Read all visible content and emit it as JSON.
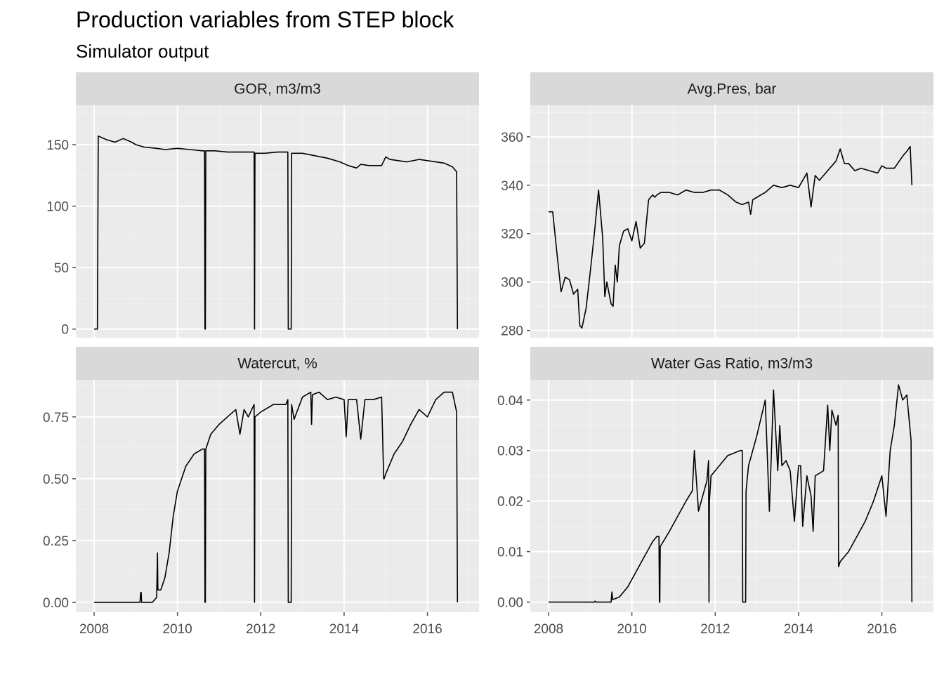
{
  "title": "Production variables from STEP block",
  "subtitle": "Simulator output",
  "theme": {
    "panel_bg": "#ebebeb",
    "strip_bg": "#d9d9d9",
    "grid_major": "#ffffff",
    "grid_minor": "#f4f4f4",
    "line_color": "#000000",
    "tick_color": "#4d4d4d"
  },
  "chart_data": [
    {
      "type": "line",
      "facet": "GOR, m3/m3",
      "xlim": [
        2008.0,
        2016.8
      ],
      "xticks": [
        2008,
        2010,
        2012,
        2014,
        2016
      ],
      "ylim": [
        -7,
        182
      ],
      "yticks": [
        0,
        50,
        100,
        150
      ],
      "ytick_labels": [
        "0",
        "50",
        "100",
        "150"
      ],
      "x": [
        2008.0,
        2008.05,
        2008.08,
        2008.1,
        2008.3,
        2008.5,
        2008.7,
        2008.9,
        2009.0,
        2009.2,
        2009.5,
        2009.7,
        2010.0,
        2010.3,
        2010.6,
        2010.65,
        2010.66,
        2010.67,
        2010.68,
        2010.9,
        2011.2,
        2011.5,
        2011.8,
        2011.84,
        2011.85,
        2011.86,
        2012.1,
        2012.4,
        2012.65,
        2012.66,
        2012.73,
        2012.74,
        2012.75,
        2013.0,
        2013.3,
        2013.6,
        2013.9,
        2014.1,
        2014.3,
        2014.4,
        2014.6,
        2014.9,
        2015.0,
        2015.1,
        2015.3,
        2015.5,
        2015.8,
        2016.0,
        2016.2,
        2016.4,
        2016.6,
        2016.7,
        2016.72
      ],
      "y": [
        0,
        0,
        0,
        157,
        154,
        152,
        155,
        152,
        150,
        148,
        147,
        146,
        147,
        146,
        145,
        145,
        0,
        0,
        145,
        145,
        144,
        144,
        144,
        144,
        0,
        143,
        143,
        144,
        144,
        0,
        0,
        143,
        143,
        143,
        141,
        139,
        136,
        133,
        131,
        134,
        133,
        133,
        140,
        138,
        137,
        136,
        138,
        137,
        136,
        135,
        132,
        128,
        0
      ]
    },
    {
      "type": "line",
      "facet": "Avg.Pres, bar",
      "xlim": [
        2008.0,
        2016.8
      ],
      "xticks": [
        2008,
        2010,
        2012,
        2014,
        2016
      ],
      "ylim": [
        277,
        373
      ],
      "yticks": [
        280,
        300,
        320,
        340,
        360
      ],
      "ytick_labels": [
        "280",
        "300",
        "320",
        "340",
        "360"
      ],
      "x": [
        2008.0,
        2008.1,
        2008.2,
        2008.3,
        2008.4,
        2008.5,
        2008.6,
        2008.7,
        2008.75,
        2008.8,
        2008.9,
        2009.0,
        2009.1,
        2009.2,
        2009.3,
        2009.35,
        2009.4,
        2009.5,
        2009.55,
        2009.6,
        2009.65,
        2009.7,
        2009.8,
        2009.9,
        2010.0,
        2010.1,
        2010.2,
        2010.3,
        2010.35,
        2010.4,
        2010.5,
        2010.55,
        2010.6,
        2010.7,
        2010.9,
        2011.1,
        2011.3,
        2011.5,
        2011.7,
        2011.9,
        2012.1,
        2012.3,
        2012.5,
        2012.65,
        2012.8,
        2012.85,
        2012.9,
        2013.0,
        2013.2,
        2013.4,
        2013.6,
        2013.8,
        2014.0,
        2014.2,
        2014.3,
        2014.4,
        2014.5,
        2014.7,
        2014.9,
        2015.0,
        2015.1,
        2015.2,
        2015.35,
        2015.5,
        2015.7,
        2015.9,
        2016.0,
        2016.1,
        2016.3,
        2016.5,
        2016.6,
        2016.68,
        2016.72
      ],
      "y": [
        329,
        329,
        312,
        296,
        302,
        301,
        295,
        297,
        282,
        281,
        289,
        304,
        320,
        338,
        318,
        294,
        300,
        291,
        290,
        307,
        300,
        315,
        321,
        322,
        317,
        325,
        314,
        316,
        325,
        334,
        336,
        335,
        336,
        337,
        337,
        336,
        338,
        337,
        337,
        338,
        338,
        336,
        333,
        332,
        333,
        328,
        334,
        335,
        337,
        340,
        339,
        340,
        339,
        345,
        331,
        344,
        342,
        346,
        350,
        355,
        349,
        349,
        346,
        347,
        346,
        345,
        348,
        347,
        347,
        352,
        354,
        356,
        340
      ]
    },
    {
      "type": "line",
      "facet": "Watercut, %",
      "xlim": [
        2008.0,
        2016.8
      ],
      "xticks": [
        2008,
        2010,
        2012,
        2014,
        2016
      ],
      "ylim": [
        -0.04,
        0.9
      ],
      "yticks": [
        0,
        0.25,
        0.5,
        0.75
      ],
      "ytick_labels": [
        "0.00",
        "0.25",
        "0.50",
        "0.75"
      ],
      "x": [
        2008.0,
        2008.5,
        2009.0,
        2009.1,
        2009.12,
        2009.13,
        2009.14,
        2009.3,
        2009.4,
        2009.5,
        2009.52,
        2009.53,
        2009.6,
        2009.7,
        2009.8,
        2009.9,
        2010.0,
        2010.2,
        2010.4,
        2010.6,
        2010.65,
        2010.66,
        2010.67,
        2010.68,
        2010.8,
        2011.0,
        2011.2,
        2011.4,
        2011.5,
        2011.6,
        2011.7,
        2011.84,
        2011.85,
        2011.86,
        2012.0,
        2012.3,
        2012.6,
        2012.65,
        2012.66,
        2012.73,
        2012.74,
        2012.8,
        2013.0,
        2013.2,
        2013.22,
        2013.24,
        2013.4,
        2013.6,
        2013.8,
        2014.0,
        2014.05,
        2014.1,
        2014.3,
        2014.4,
        2014.5,
        2014.7,
        2014.9,
        2014.95,
        2014.96,
        2015.0,
        2015.2,
        2015.4,
        2015.6,
        2015.8,
        2016.0,
        2016.2,
        2016.4,
        2016.6,
        2016.7,
        2016.72
      ],
      "y": [
        0,
        0,
        0,
        0,
        0.04,
        0.04,
        0,
        0,
        0,
        0.02,
        0.2,
        0.05,
        0.05,
        0.1,
        0.2,
        0.35,
        0.45,
        0.55,
        0.6,
        0.62,
        0.62,
        0,
        0,
        0.62,
        0.68,
        0.72,
        0.75,
        0.78,
        0.68,
        0.78,
        0.75,
        0.8,
        0,
        0.75,
        0.77,
        0.8,
        0.8,
        0.82,
        0,
        0,
        0.8,
        0.74,
        0.83,
        0.85,
        0.72,
        0.84,
        0.85,
        0.82,
        0.83,
        0.82,
        0.67,
        0.82,
        0.82,
        0.66,
        0.82,
        0.82,
        0.83,
        0.5,
        0.5,
        0.52,
        0.6,
        0.65,
        0.72,
        0.78,
        0.75,
        0.82,
        0.85,
        0.85,
        0.77,
        0
      ]
    },
    {
      "type": "line",
      "facet": "Water Gas Ratio, m3/m3",
      "xlim": [
        2008.0,
        2016.8
      ],
      "xticks": [
        2008,
        2010,
        2012,
        2014,
        2016
      ],
      "ylim": [
        -0.002,
        0.044
      ],
      "yticks": [
        0,
        0.01,
        0.02,
        0.03,
        0.04
      ],
      "ytick_labels": [
        "0.00",
        "0.01",
        "0.02",
        "0.03",
        "0.04"
      ],
      "x": [
        2008.0,
        2008.5,
        2009.0,
        2009.1,
        2009.12,
        2009.14,
        2009.3,
        2009.5,
        2009.52,
        2009.54,
        2009.7,
        2009.9,
        2010.1,
        2010.3,
        2010.5,
        2010.6,
        2010.65,
        2010.66,
        2010.67,
        2010.68,
        2010.9,
        2011.1,
        2011.3,
        2011.45,
        2011.5,
        2011.6,
        2011.8,
        2011.84,
        2011.85,
        2011.86,
        2011.9,
        2012.1,
        2012.3,
        2012.6,
        2012.65,
        2012.66,
        2012.73,
        2012.74,
        2012.8,
        2012.9,
        2013.0,
        2013.2,
        2013.3,
        2013.4,
        2013.5,
        2013.55,
        2013.6,
        2013.7,
        2013.8,
        2013.9,
        2014.0,
        2014.05,
        2014.1,
        2014.2,
        2014.3,
        2014.35,
        2014.4,
        2014.6,
        2014.7,
        2014.75,
        2014.8,
        2014.9,
        2014.95,
        2014.96,
        2015.0,
        2015.2,
        2015.4,
        2015.6,
        2015.8,
        2016.0,
        2016.1,
        2016.2,
        2016.3,
        2016.4,
        2016.5,
        2016.6,
        2016.7,
        2016.72
      ],
      "y": [
        0,
        0,
        0,
        0,
        0.0002,
        0,
        0,
        0,
        0.002,
        0.0005,
        0.001,
        0.003,
        0.006,
        0.009,
        0.012,
        0.013,
        0.013,
        0,
        0,
        0.011,
        0.014,
        0.017,
        0.02,
        0.022,
        0.03,
        0.018,
        0.024,
        0.028,
        0,
        0.02,
        0.025,
        0.027,
        0.029,
        0.03,
        0.03,
        0,
        0,
        0.022,
        0.027,
        0.03,
        0.033,
        0.04,
        0.018,
        0.042,
        0.026,
        0.035,
        0.027,
        0.028,
        0.026,
        0.016,
        0.027,
        0.027,
        0.015,
        0.025,
        0.021,
        0.014,
        0.025,
        0.026,
        0.039,
        0.03,
        0.038,
        0.035,
        0.037,
        0.007,
        0.008,
        0.01,
        0.013,
        0.016,
        0.02,
        0.025,
        0.017,
        0.03,
        0.035,
        0.043,
        0.04,
        0.041,
        0.032,
        0
      ]
    }
  ]
}
